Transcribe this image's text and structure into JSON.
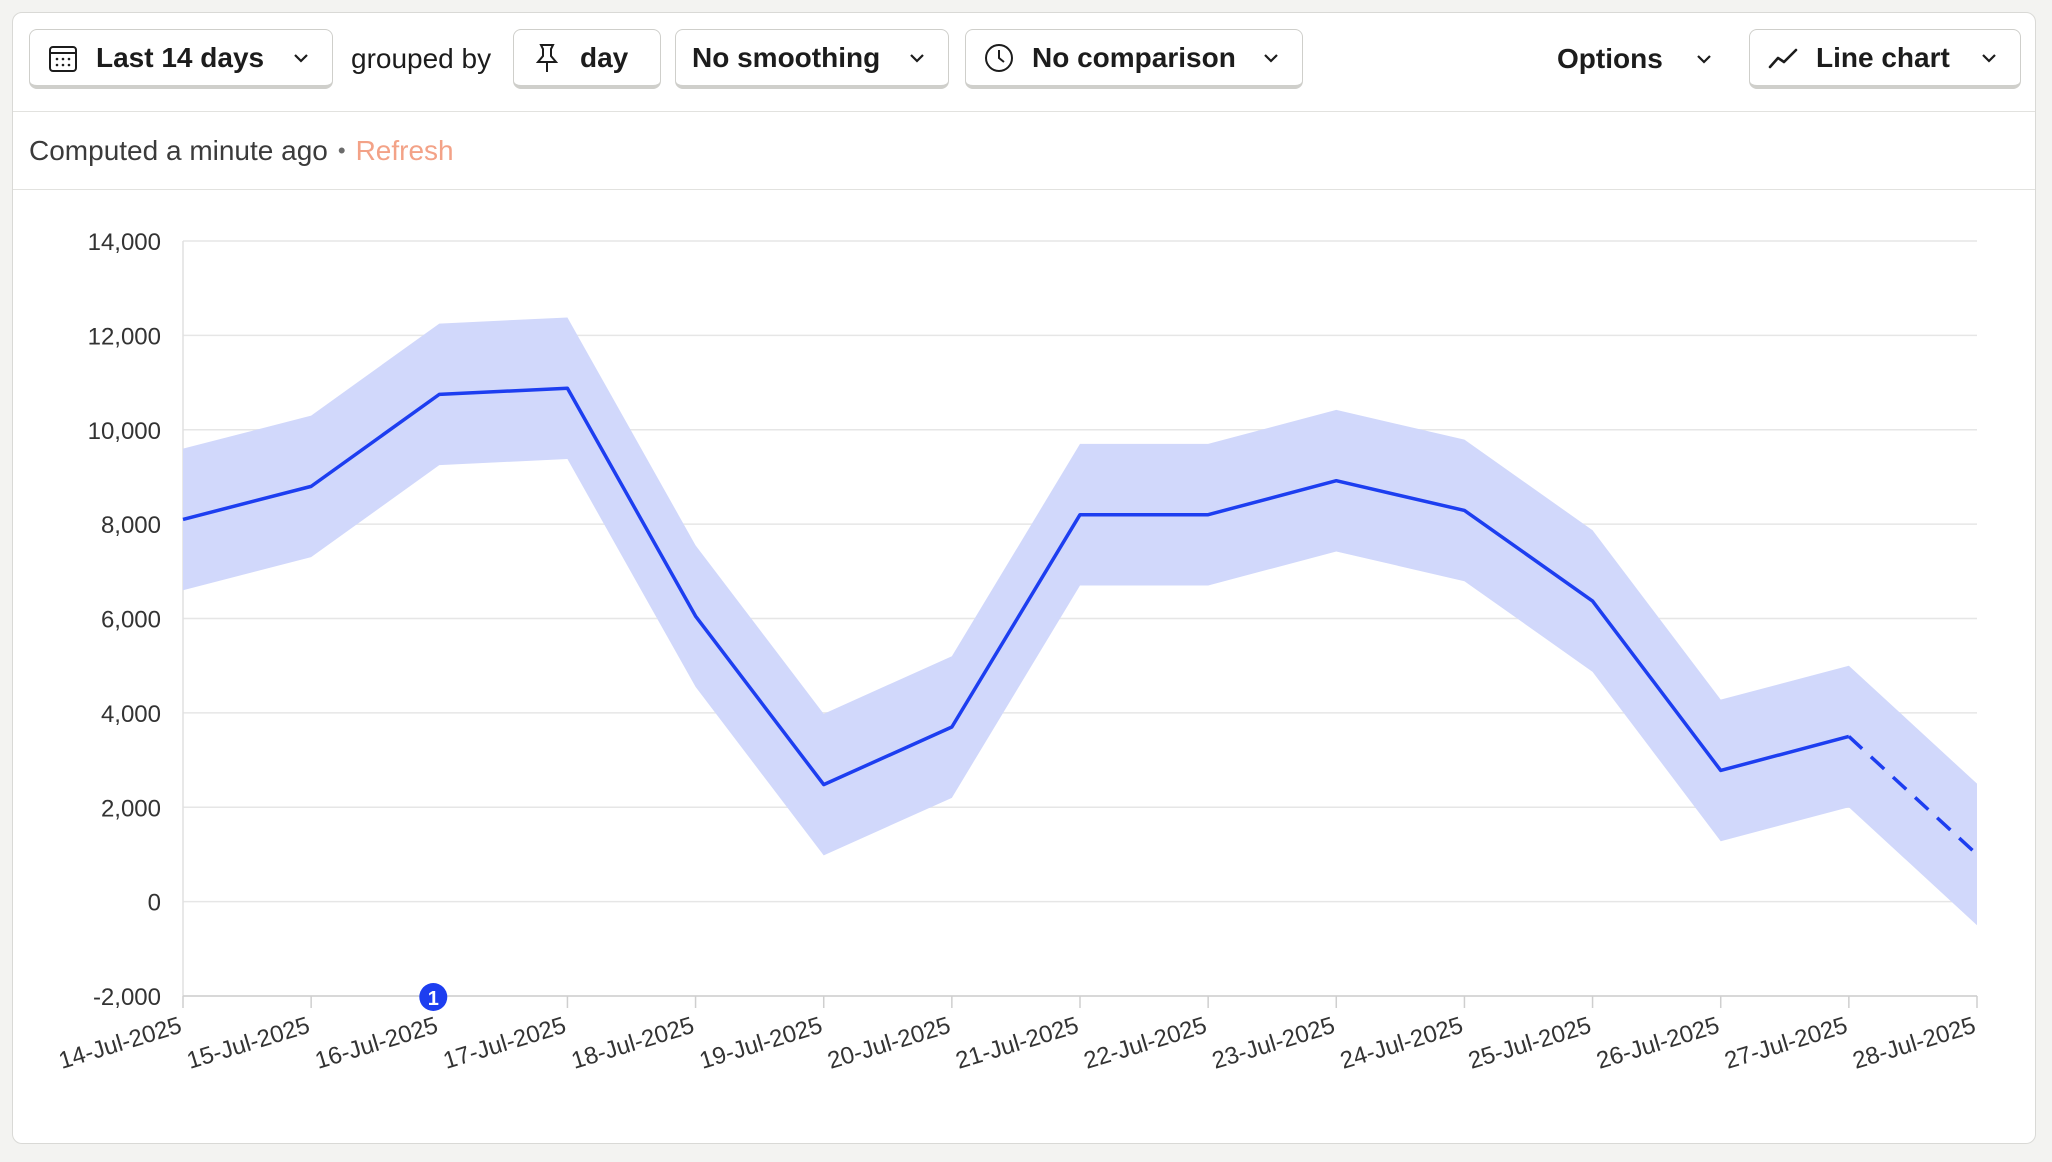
{
  "toolbar": {
    "date_range_label": "Last 14 days",
    "grouped_by_label": "grouped by",
    "interval_label": "day",
    "smoothing_label": "No smoothing",
    "comparison_label": "No comparison",
    "options_label": "Options",
    "chart_type_label": "Line chart"
  },
  "status": {
    "computed_text": "Computed a minute ago",
    "separator": "•",
    "refresh_label": "Refresh"
  },
  "annotation": {
    "badge_text": "1",
    "date_index": 2
  },
  "colors": {
    "line": "#1d3ef0",
    "band": "#d1d8fb",
    "grid": "#e6e6e6",
    "axis_text": "#333333",
    "badge": "#1d3ef0",
    "refresh": "#f3a287"
  },
  "chart_data": {
    "type": "line",
    "title": "",
    "xlabel": "",
    "ylabel": "",
    "ylim": [
      -2000,
      14000
    ],
    "yticks": [
      -2000,
      0,
      2000,
      4000,
      6000,
      8000,
      10000,
      12000,
      14000
    ],
    "ytick_labels": [
      "-2,000",
      "0",
      "2,000",
      "4,000",
      "6,000",
      "8,000",
      "10,000",
      "12,000",
      "14,000"
    ],
    "categories": [
      "14-Jul-2025",
      "15-Jul-2025",
      "16-Jul-2025",
      "17-Jul-2025",
      "18-Jul-2025",
      "19-Jul-2025",
      "20-Jul-2025",
      "21-Jul-2025",
      "22-Jul-2025",
      "23-Jul-2025",
      "24-Jul-2025",
      "25-Jul-2025",
      "26-Jul-2025",
      "27-Jul-2025",
      "28-Jul-2025"
    ],
    "series": [
      {
        "name": "value",
        "values": [
          8100,
          8800,
          10750,
          10880,
          6050,
          2480,
          3700,
          8200,
          8200,
          8920,
          8290,
          6370,
          2780,
          3500,
          1000
        ],
        "upper": [
          9600,
          10300,
          12250,
          12380,
          7550,
          3980,
          5200,
          9700,
          9700,
          10420,
          9790,
          7870,
          4280,
          5000,
          2500
        ],
        "lower": [
          6600,
          7300,
          9250,
          9380,
          4550,
          980,
          2200,
          6700,
          6700,
          7420,
          6790,
          4870,
          1280,
          2000,
          -500
        ],
        "incomplete_from_index": 13
      }
    ]
  }
}
